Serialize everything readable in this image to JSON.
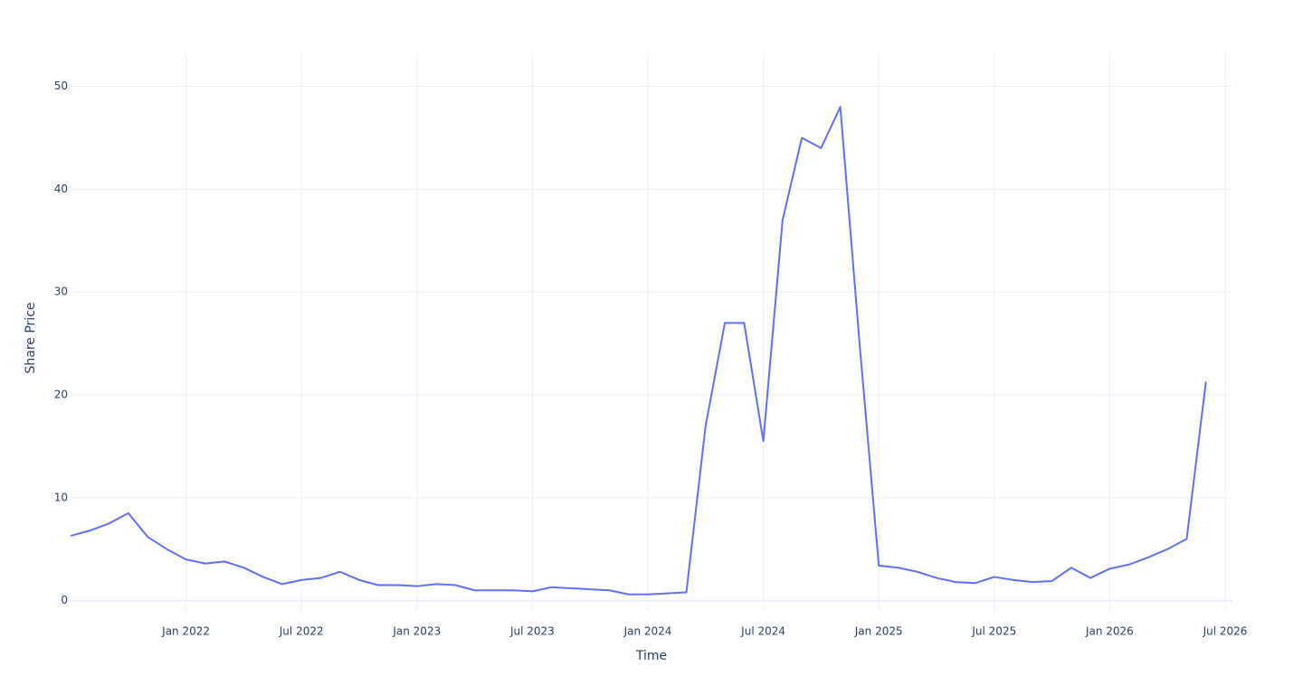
{
  "chart_data": {
    "type": "line",
    "x_label": "Time",
    "y_label": "Share Price",
    "x": [
      "2021-07",
      "2021-08",
      "2021-09",
      "2021-10",
      "2021-11",
      "2021-12",
      "2022-01",
      "2022-02",
      "2022-03",
      "2022-04",
      "2022-05",
      "2022-06",
      "2022-07",
      "2022-08",
      "2022-09",
      "2022-10",
      "2022-11",
      "2022-12",
      "2023-01",
      "2023-02",
      "2023-03",
      "2023-04",
      "2023-05",
      "2023-06",
      "2023-07",
      "2023-08",
      "2023-09",
      "2023-10",
      "2023-11",
      "2023-12",
      "2024-01",
      "2024-02",
      "2024-03",
      "2024-04",
      "2024-05",
      "2024-06",
      "2024-07",
      "2024-08",
      "2024-09",
      "2024-10",
      "2024-11",
      "2024-12",
      "2025-01",
      "2025-02",
      "2025-03",
      "2025-04",
      "2025-05",
      "2025-06",
      "2025-07",
      "2025-08",
      "2025-09",
      "2025-10",
      "2025-11",
      "2025-12",
      "2026-01",
      "2026-02",
      "2026-03",
      "2026-04",
      "2026-05",
      "2026-06"
    ],
    "series": [
      {
        "name": "Share Price",
        "color": "#636efa",
        "values": [
          6.3,
          6.8,
          7.5,
          8.5,
          6.2,
          5.0,
          4.0,
          3.6,
          3.8,
          3.2,
          2.3,
          1.6,
          2.0,
          2.2,
          2.8,
          2.0,
          1.5,
          1.5,
          1.4,
          1.6,
          1.5,
          1.0,
          1.0,
          1.0,
          0.9,
          1.3,
          1.2,
          1.1,
          1.0,
          0.6,
          0.6,
          0.7,
          0.8,
          17,
          27,
          27,
          15.5,
          37,
          45,
          44,
          48,
          25,
          3.4,
          3.2,
          2.8,
          2.2,
          1.8,
          1.7,
          2.3,
          2.0,
          1.8,
          1.9,
          3.2,
          2.2,
          3.1,
          3.5,
          4.2,
          5.0,
          6.0,
          21.3
        ]
      }
    ],
    "xlim": [
      "2021-07",
      "2026-07"
    ],
    "xticks": [
      {
        "value": "2022-01",
        "label": "Jan 2022"
      },
      {
        "value": "2022-07",
        "label": "Jul 2022"
      },
      {
        "value": "2023-01",
        "label": "Jan 2023"
      },
      {
        "value": "2023-07",
        "label": "Jul 2023"
      },
      {
        "value": "2024-01",
        "label": "Jan 2024"
      },
      {
        "value": "2024-07",
        "label": "Jul 2024"
      },
      {
        "value": "2025-01",
        "label": "Jan 2025"
      },
      {
        "value": "2025-07",
        "label": "Jul 2025"
      },
      {
        "value": "2026-01",
        "label": "Jan 2026"
      },
      {
        "value": "2026-07",
        "label": "Jul 2026"
      }
    ],
    "ylim": [
      -1,
      53.3
    ],
    "yticks": [
      0,
      10,
      20,
      30,
      40,
      50
    ],
    "grid": true
  }
}
